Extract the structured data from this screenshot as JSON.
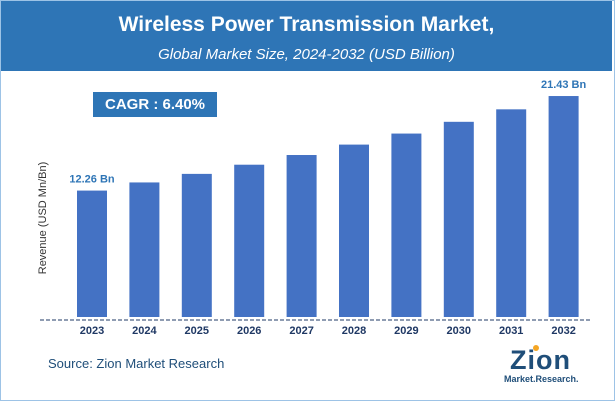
{
  "header": {
    "title": "Wireless Power Transmission Market,",
    "subtitle": "Global Market Size, 2024-2032 (USD Billion)"
  },
  "cagr": {
    "label": "CAGR : 6.40%"
  },
  "source": "Source: Zion Market Research",
  "logo": {
    "text": "Zion",
    "subtext": "Market.Research."
  },
  "colors": {
    "header": "#2e75b6",
    "bar": "#4472c4",
    "label": "#2e75b6",
    "tick": "#1f3864"
  },
  "chart_data": {
    "type": "bar",
    "title": "Wireless Power Transmission Market,",
    "subtitle": "Global Market Size, 2024-2032 (USD Billion)",
    "xlabel": "",
    "ylabel": "Revenue (USD Mn/Bn)",
    "categories": [
      "2023",
      "2024",
      "2025",
      "2026",
      "2027",
      "2028",
      "2029",
      "2030",
      "2031",
      "2032"
    ],
    "values": [
      12.26,
      13.05,
      13.88,
      14.77,
      15.71,
      16.72,
      17.79,
      18.93,
      20.14,
      21.43
    ],
    "data_labels": [
      {
        "category": "2023",
        "text": "12.26 Bn"
      },
      {
        "category": "2032",
        "text": "21.43 Bn"
      }
    ],
    "ylim": [
      0,
      22.5
    ],
    "grid": false,
    "legend": "none"
  }
}
